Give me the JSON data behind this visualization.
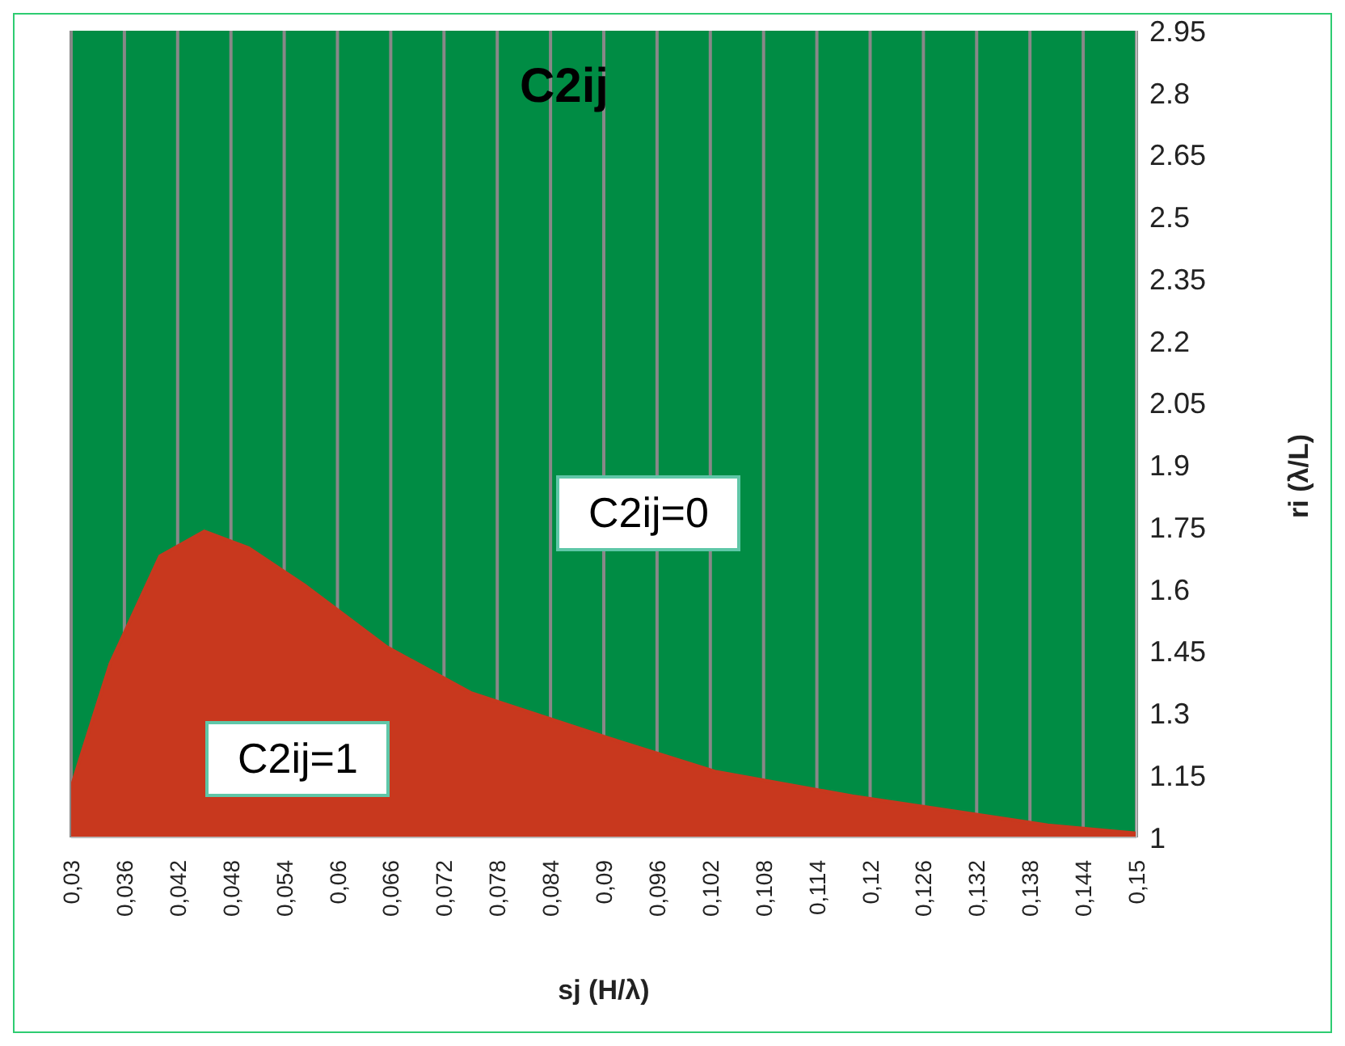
{
  "chart_data": {
    "type": "area",
    "title": "C2ij",
    "xlabel": "sj (H/λ)",
    "ylabel": "ri (λ/L)",
    "x": [
      0.03,
      0.031,
      0.0344,
      0.04,
      0.045,
      0.05,
      0.0563,
      0.0656,
      0.075,
      0.0906,
      0.1025,
      0.118,
      0.1306,
      0.14,
      0.15
    ],
    "series": [
      {
        "color": "#c8381e",
        "values": [
          1.12,
          1.19,
          1.42,
          1.68,
          1.74,
          1.7,
          1.61,
          1.46,
          1.35,
          1.24,
          1.16,
          1.1,
          1.06,
          1.03,
          1.01
        ]
      }
    ],
    "bands": [
      {
        "axis": "y",
        "from": 1,
        "to": 2.95,
        "color": "#008c44"
      }
    ],
    "annotations": [
      "C2ij=0",
      "C2ij=1"
    ],
    "xlim": [
      0.03,
      0.15
    ],
    "xticks": [
      {
        "value": 0.03,
        "label": "0,03"
      },
      {
        "value": 0.036,
        "label": "0,036"
      },
      {
        "value": 0.042,
        "label": "0,042"
      },
      {
        "value": 0.048,
        "label": "0,048"
      },
      {
        "value": 0.054,
        "label": "0,054"
      },
      {
        "value": 0.06,
        "label": "0,06"
      },
      {
        "value": 0.066,
        "label": "0,066"
      },
      {
        "value": 0.072,
        "label": "0,072"
      },
      {
        "value": 0.078,
        "label": "0,078"
      },
      {
        "value": 0.084,
        "label": "0,084"
      },
      {
        "value": 0.09,
        "label": "0,09"
      },
      {
        "value": 0.096,
        "label": "0,096"
      },
      {
        "value": 0.102,
        "label": "0,102"
      },
      {
        "value": 0.108,
        "label": "0,108"
      },
      {
        "value": 0.114,
        "label": "0,114"
      },
      {
        "value": 0.12,
        "label": "0,12"
      },
      {
        "value": 0.126,
        "label": "0,126"
      },
      {
        "value": 0.132,
        "label": "0,132"
      },
      {
        "value": 0.138,
        "label": "0,138"
      },
      {
        "value": 0.144,
        "label": "0,144"
      },
      {
        "value": 0.15,
        "label": "0,15"
      }
    ],
    "ylim": [
      1,
      2.95
    ],
    "yticks": [
      1,
      1.15,
      1.3,
      1.45,
      1.6,
      1.75,
      1.9,
      2.05,
      2.2,
      2.35,
      2.5,
      2.65,
      2.8,
      2.95
    ],
    "grid": "x",
    "legend": false
  }
}
